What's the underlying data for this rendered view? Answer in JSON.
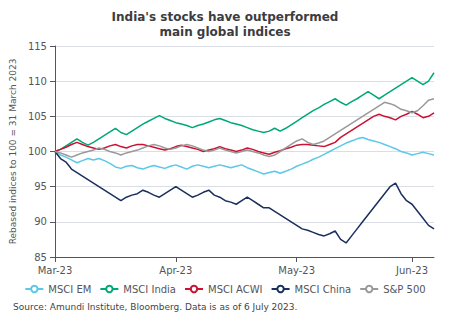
{
  "chart_data": {
    "type": "line",
    "title": "India's stocks have outperformed\nmain global indices",
    "ylabel": "Rebased indices to 100 = 31 March 2023",
    "annotations": [
      "Source: Amundi Institute, Bloomberg. Data is as of 6 July 2023."
    ],
    "x": [
      0,
      1,
      2,
      3,
      4,
      5,
      6,
      7,
      8,
      9,
      10,
      11,
      12,
      13,
      14,
      15,
      16,
      17,
      18,
      19,
      20,
      21,
      22,
      23,
      24,
      25,
      26,
      27,
      28,
      29,
      30,
      31,
      32,
      33,
      34,
      35,
      36,
      37,
      38,
      39,
      40,
      41,
      42,
      43,
      44,
      45,
      46,
      47,
      48,
      49,
      50,
      51,
      52,
      53,
      54,
      55,
      56,
      57,
      58,
      59,
      60,
      61,
      62,
      63,
      64,
      65,
      66,
      67,
      68,
      69
    ],
    "xlim": [
      0,
      69
    ],
    "xticks": [
      {
        "value": 0,
        "label": "Mar-23"
      },
      {
        "value": 22,
        "label": "Apr-23"
      },
      {
        "value": 44,
        "label": "May-23"
      },
      {
        "value": 65,
        "label": "Jun-23"
      }
    ],
    "ylim": [
      85,
      115
    ],
    "yticks": [
      85,
      90,
      95,
      100,
      105,
      110,
      115
    ],
    "grid": true,
    "legend": "bottom",
    "series": [
      {
        "name": "MSCI EM",
        "color": "#5bc8e8",
        "values": [
          100,
          99.5,
          99.2,
          98.8,
          98.4,
          98.7,
          99.0,
          98.8,
          99.0,
          98.7,
          98.3,
          97.8,
          97.6,
          97.9,
          98.0,
          97.7,
          97.5,
          97.8,
          98.0,
          97.8,
          97.6,
          97.9,
          98.1,
          97.8,
          97.5,
          97.9,
          98.1,
          97.9,
          97.7,
          97.9,
          98.1,
          97.9,
          97.7,
          97.9,
          98.1,
          97.7,
          97.4,
          97.1,
          96.8,
          97.0,
          97.2,
          96.9,
          97.2,
          97.5,
          97.9,
          98.2,
          98.5,
          98.9,
          99.2,
          99.6,
          100.0,
          100.4,
          100.8,
          101.2,
          101.5,
          101.8,
          102.0,
          101.7,
          101.5,
          101.3,
          101.0,
          100.7,
          100.4,
          100.0,
          99.8,
          99.5,
          99.7,
          99.9,
          99.7,
          99.5
        ]
      },
      {
        "name": "MSCI India",
        "color": "#00a878",
        "values": [
          100,
          100.3,
          100.8,
          101.3,
          101.8,
          101.3,
          100.9,
          101.3,
          101.8,
          102.3,
          102.8,
          103.3,
          102.7,
          102.4,
          102.9,
          103.4,
          103.9,
          104.3,
          104.7,
          105.1,
          104.7,
          104.4,
          104.1,
          103.9,
          103.7,
          103.4,
          103.7,
          103.9,
          104.2,
          104.5,
          104.7,
          104.4,
          104.1,
          103.9,
          103.7,
          103.4,
          103.1,
          102.9,
          102.7,
          102.9,
          103.3,
          102.9,
          103.3,
          103.8,
          104.3,
          104.8,
          105.3,
          105.8,
          106.2,
          106.7,
          107.1,
          107.5,
          107.0,
          106.6,
          107.1,
          107.5,
          108.0,
          108.5,
          108.0,
          107.5,
          108.0,
          108.5,
          109.0,
          109.5,
          110.0,
          110.5,
          110.0,
          109.5,
          110.0,
          111.2
        ]
      },
      {
        "name": "MSCI ACWI",
        "color": "#cc1133",
        "values": [
          100,
          100.3,
          100.6,
          101.0,
          101.3,
          101.0,
          100.7,
          100.5,
          100.3,
          100.5,
          100.8,
          101.0,
          100.7,
          100.5,
          100.8,
          101.0,
          101.0,
          100.8,
          100.6,
          100.4,
          100.2,
          100.4,
          100.7,
          100.9,
          100.7,
          100.5,
          100.3,
          100.0,
          100.2,
          100.4,
          100.7,
          100.4,
          100.2,
          100.0,
          100.2,
          100.5,
          100.3,
          100.0,
          99.8,
          99.6,
          99.9,
          100.1,
          100.4,
          100.6,
          100.9,
          101.0,
          101.0,
          100.9,
          100.8,
          100.7,
          101.0,
          101.3,
          102.0,
          102.5,
          103.0,
          103.5,
          104.0,
          104.5,
          105.0,
          105.3,
          105.0,
          104.8,
          104.5,
          105.0,
          105.3,
          105.7,
          105.3,
          104.8,
          105.0,
          105.5
        ]
      },
      {
        "name": "MSCI China",
        "color": "#1a2f5e",
        "values": [
          100,
          99.0,
          98.5,
          97.5,
          97.0,
          96.5,
          96.0,
          95.5,
          95.0,
          94.5,
          94.0,
          93.5,
          93.0,
          93.5,
          93.8,
          94.0,
          94.5,
          94.2,
          93.8,
          93.5,
          94.0,
          94.5,
          95.0,
          94.5,
          94.0,
          93.5,
          93.8,
          94.2,
          94.5,
          93.8,
          93.5,
          93.0,
          92.8,
          92.5,
          93.0,
          93.5,
          93.0,
          92.5,
          92.0,
          92.0,
          91.5,
          91.0,
          90.5,
          90.0,
          89.5,
          89.0,
          88.8,
          88.5,
          88.2,
          88.0,
          88.3,
          88.7,
          87.5,
          87.0,
          88.0,
          89.0,
          90.0,
          91.0,
          92.0,
          93.0,
          94.0,
          95.0,
          95.5,
          94.0,
          93.0,
          92.5,
          91.5,
          90.5,
          89.5,
          89.0
        ]
      },
      {
        "name": "S&P 500",
        "color": "#999999",
        "values": [
          100,
          99.8,
          99.5,
          99.2,
          99.5,
          99.8,
          100.0,
          100.2,
          100.5,
          100.3,
          100.0,
          99.8,
          99.5,
          99.8,
          100.0,
          100.2,
          100.5,
          100.8,
          101.0,
          100.8,
          100.5,
          100.3,
          100.5,
          100.8,
          101.0,
          100.8,
          100.5,
          100.2,
          100.0,
          100.2,
          100.5,
          100.2,
          100.0,
          99.8,
          100.0,
          100.2,
          100.0,
          99.8,
          99.5,
          99.3,
          99.5,
          100.0,
          100.5,
          101.0,
          101.5,
          101.8,
          101.3,
          101.0,
          101.2,
          101.5,
          102.0,
          102.5,
          103.0,
          103.5,
          104.0,
          104.5,
          105.0,
          105.5,
          106.0,
          106.5,
          107.0,
          106.8,
          106.5,
          106.0,
          105.8,
          105.5,
          105.8,
          106.5,
          107.3,
          107.5
        ]
      }
    ]
  }
}
